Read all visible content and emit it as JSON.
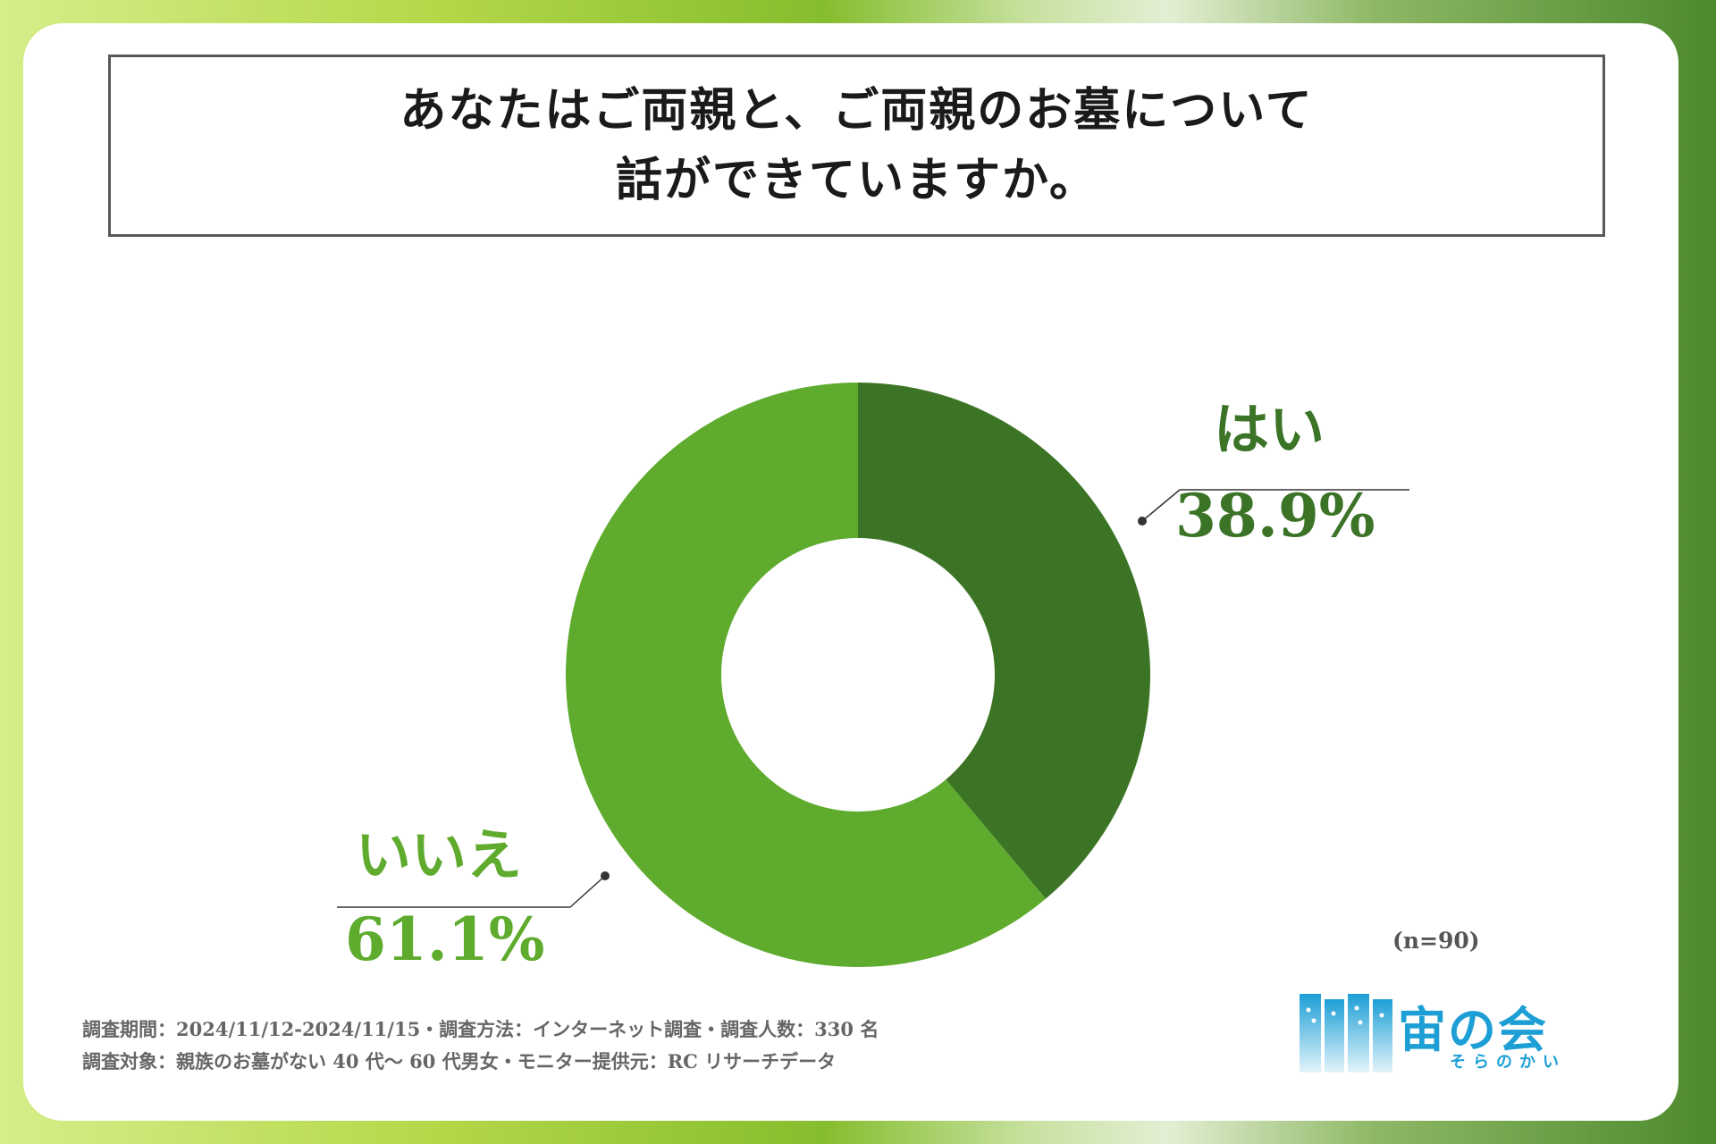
{
  "colors": {
    "yes": "#3c7425",
    "no": "#5eab2e",
    "hole": "#ffffff",
    "leader": "#333333"
  },
  "chart_data": {
    "type": "pie",
    "title_lines": [
      "あなたはご両親と、ご両親のお墓について",
      "話ができていますか。"
    ],
    "slices": [
      {
        "label": "はい",
        "value": 38.9,
        "display": "38.9%"
      },
      {
        "label": "いいえ",
        "value": 61.1,
        "display": "61.1%"
      }
    ],
    "donut": true,
    "sample": "(n=90)"
  },
  "footer": {
    "line1": "調査期間：2024/11/12-2024/11/15・調査方法：インターネット調査・調査人数：330 名",
    "line2": "調査対象：親族のお墓がない 40 代〜 60 代男女・モニター提供元：RC リサーチデータ"
  },
  "logo": {
    "name": "宙の会",
    "kana": "そらのかい"
  }
}
